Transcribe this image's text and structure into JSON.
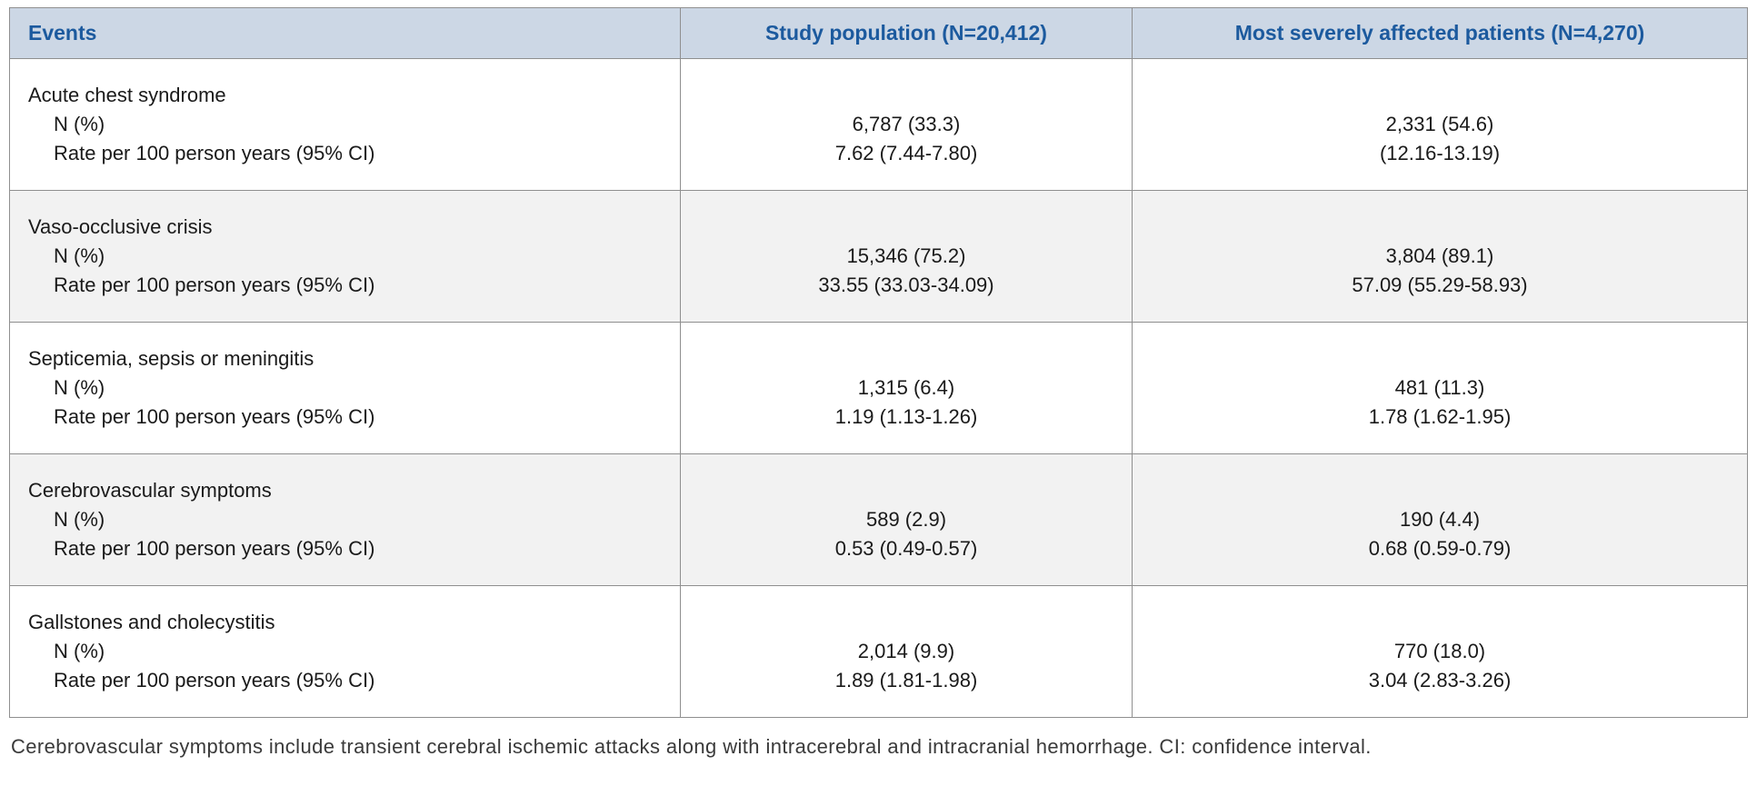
{
  "table": {
    "columns": [
      "Events",
      "Study population (N=20,412)",
      "Most severely affected patients (N=4,270)"
    ],
    "row_labels": {
      "n_label": "N (%)",
      "rate_label": "Rate per 100 person years (95% CI)"
    },
    "rows": [
      {
        "event": "Acute chest syndrome",
        "study_n": "6,787 (33.3)",
        "study_rate": "7.62 (7.44-7.80)",
        "severe_n": "2,331 (54.6)",
        "severe_rate": "(12.16-13.19)"
      },
      {
        "event": "Vaso-occlusive crisis",
        "study_n": "15,346 (75.2)",
        "study_rate": "33.55 (33.03-34.09)",
        "severe_n": "3,804 (89.1)",
        "severe_rate": "57.09 (55.29-58.93)"
      },
      {
        "event": "Septicemia, sepsis or meningitis",
        "study_n": "1,315 (6.4)",
        "study_rate": "1.19 (1.13-1.26)",
        "severe_n": "481 (11.3)",
        "severe_rate": "1.78 (1.62-1.95)"
      },
      {
        "event": "Cerebrovascular symptoms",
        "study_n": "589 (2.9)",
        "study_rate": "0.53 (0.49-0.57)",
        "severe_n": "190 (4.4)",
        "severe_rate": "0.68 (0.59-0.79)"
      },
      {
        "event": "Gallstones and cholecystitis",
        "study_n": "2,014 (9.9)",
        "study_rate": "1.89 (1.81-1.98)",
        "severe_n": "770 (18.0)",
        "severe_rate": "3.04 (2.83-3.26)"
      }
    ]
  },
  "footnote": "Cerebrovascular symptoms include transient cerebral ischemic attacks along with intracerebral and intracranial hemorrhage. CI: confidence interval.",
  "colors": {
    "header_bg": "#ccd7e5",
    "header_text": "#1c5a9e",
    "row_alt_bg": "#f2f2f2",
    "border": "#8f8f8f"
  }
}
